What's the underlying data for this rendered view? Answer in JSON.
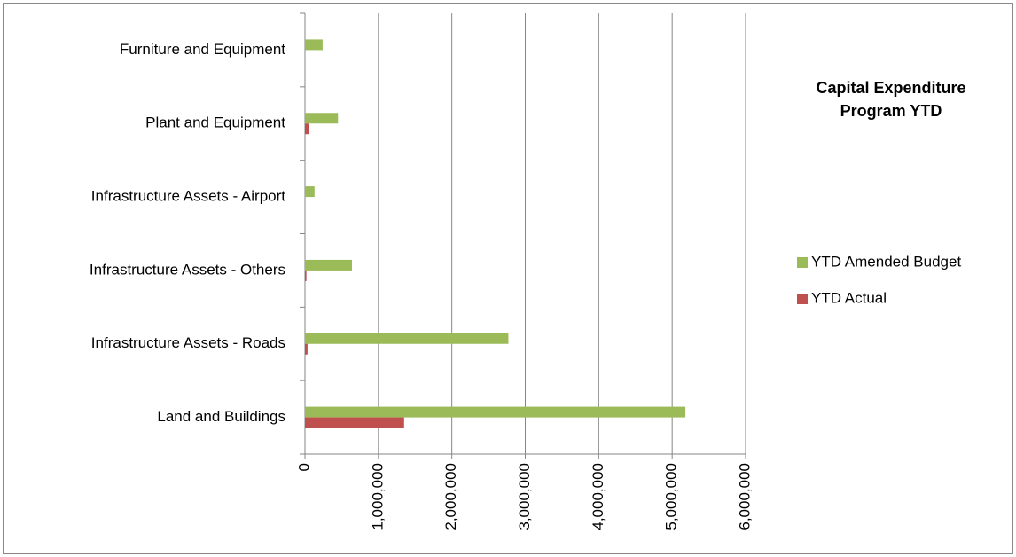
{
  "chart_data": {
    "type": "hbar",
    "title": "Capital Expenditure Program YTD",
    "categories": [
      "Land and Buildings",
      "Infrastructure Assets - Roads",
      "Infrastructure Assets - Others",
      "Infrastructure Assets - Airport",
      "Plant and Equipment",
      "Furniture and Equipment"
    ],
    "series": [
      {
        "name": "YTD Amended Budget",
        "color": "#9bbb59",
        "values": [
          5180000,
          2770000,
          640000,
          130000,
          450000,
          240000
        ]
      },
      {
        "name": "YTD Actual",
        "color": "#c0504d",
        "values": [
          1350000,
          35000,
          20000,
          0,
          60000,
          0
        ]
      }
    ],
    "xlim": [
      0,
      6000000
    ],
    "xticks": [
      0,
      {
        "value": 1000000,
        "label": "1,000,000"
      },
      {
        "value": 2000000,
        "label": "2,000,000"
      },
      {
        "value": 3000000,
        "label": "3,000,000"
      },
      {
        "value": 4000000,
        "label": "4,000,000"
      },
      {
        "value": 5000000,
        "label": "5,000,000"
      },
      {
        "value": 6000000,
        "label": "6,000,000"
      }
    ],
    "grid": true
  }
}
